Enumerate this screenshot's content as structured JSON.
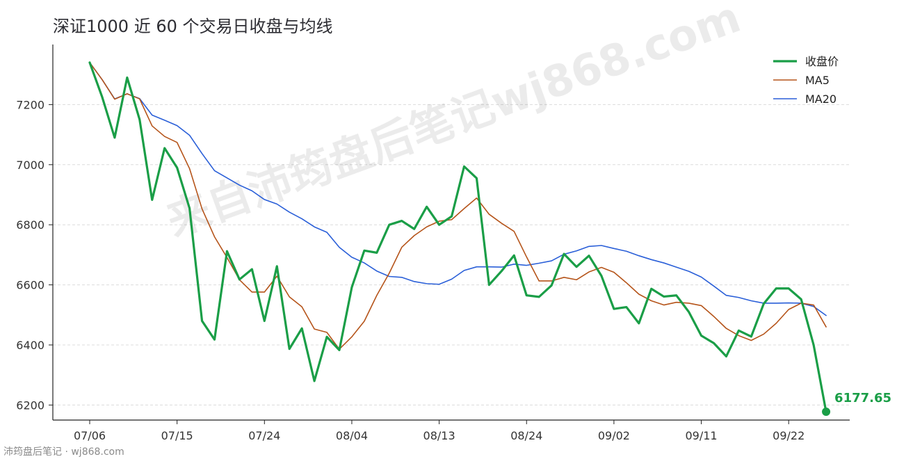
{
  "chart_data": {
    "type": "line",
    "title": "深证1000 近 60 个交易日收盘与均线",
    "x_tick_labels": [
      "07/06",
      "07/15",
      "07/24",
      "08/04",
      "08/13",
      "08/24",
      "09/02",
      "09/11",
      "09/22"
    ],
    "ylim": [
      6150,
      7400
    ],
    "yticks": [
      6200,
      6400,
      6600,
      6800,
      7000,
      7200
    ],
    "grid": "horizontal-dashed",
    "legend_position": "top-right",
    "series": [
      {
        "name": "收盘价",
        "color": "#1a9e47",
        "values": [
          7340,
          7225,
          7090,
          7290,
          7150,
          6883,
          7055,
          6990,
          6855,
          6480,
          6418,
          6712,
          6618,
          6652,
          6480,
          6662,
          6387,
          6455,
          6280,
          6427,
          6383,
          6592,
          6714,
          6707,
          6800,
          6813,
          6786,
          6860,
          6800,
          6828,
          6994,
          6955,
          6600,
          6646,
          6698,
          6565,
          6560,
          6598,
          6703,
          6660,
          6697,
          6630,
          6520,
          6526,
          6472,
          6587,
          6561,
          6565,
          6510,
          6431,
          6406,
          6362,
          6448,
          6428,
          6537,
          6588,
          6588,
          6552,
          6400,
          6177.65
        ]
      },
      {
        "name": "MA5",
        "color": "#b5541a",
        "values": [
          7340,
          7283,
          7218,
          7236,
          7219,
          7129,
          7094,
          7074,
          6987,
          6853,
          6760,
          6691,
          6617,
          6576,
          6576,
          6629,
          6560,
          6527,
          6453,
          6442,
          6386,
          6427,
          6479,
          6565,
          6639,
          6725,
          6764,
          6793,
          6812,
          6817,
          6854,
          6889,
          6835,
          6805,
          6778,
          6693,
          6613,
          6613,
          6625,
          6617,
          6643,
          6658,
          6642,
          6607,
          6569,
          6547,
          6533,
          6542,
          6539,
          6531,
          6495,
          6455,
          6431,
          6415,
          6436,
          6472,
          6518,
          6539,
          6533,
          6460
        ]
      },
      {
        "name": "MA20",
        "color": "#2a5fd8",
        "values": [
          7340,
          7283,
          7219,
          7236,
          7220,
          7165,
          7148,
          7130,
          7098,
          7037,
          6980,
          6956,
          6932,
          6913,
          6884,
          6869,
          6842,
          6820,
          6793,
          6775,
          6725,
          6692,
          6673,
          6646,
          6628,
          6625,
          6611,
          6604,
          6602,
          6619,
          6648,
          6660,
          6660,
          6659,
          6669,
          6665,
          6672,
          6680,
          6702,
          6713,
          6728,
          6731,
          6721,
          6712,
          6697,
          6684,
          6673,
          6659,
          6645,
          6626,
          6596,
          6565,
          6558,
          6547,
          6539,
          6539,
          6540,
          6539,
          6528,
          6498
        ]
      }
    ],
    "end_label": "6177.65"
  },
  "watermark": "来自沛筠盘后笔记wj868.com",
  "footer": "沛筠盘后笔记 · wj868.com"
}
